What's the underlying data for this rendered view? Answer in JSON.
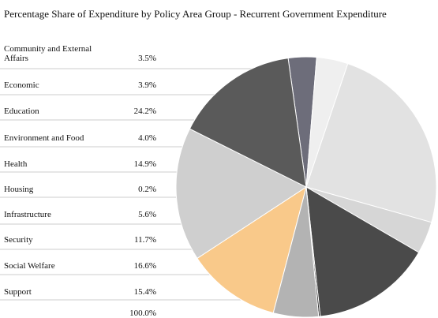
{
  "chart_data": {
    "type": "pie",
    "title": "Percentage Share of Expenditure by Policy Area Group - Recurrent Government Expenditure",
    "categories": [
      "Community and  External Affairs",
      "Economic",
      "Education",
      "Environment and Food",
      "Health",
      "Housing",
      "Infrastructure",
      "Security",
      "Social Welfare",
      "Support"
    ],
    "values": [
      3.5,
      3.9,
      24.2,
      4.0,
      14.9,
      0.2,
      5.6,
      11.7,
      16.6,
      15.4
    ],
    "value_labels": [
      "3.5%",
      "3.9%",
      "24.2%",
      "4.0%",
      "14.9%",
      "0.2%",
      "5.6%",
      "11.7%",
      "16.6%",
      "15.4%"
    ],
    "colors": [
      "#6d6d7a",
      "#efefef",
      "#e2e2e2",
      "#d6d6d6",
      "#4a4a4a",
      "#1a1a1a",
      "#b3b3b3",
      "#f9c98a",
      "#cfcfcf",
      "#5a5a5a"
    ],
    "total_label": "100.0%"
  }
}
